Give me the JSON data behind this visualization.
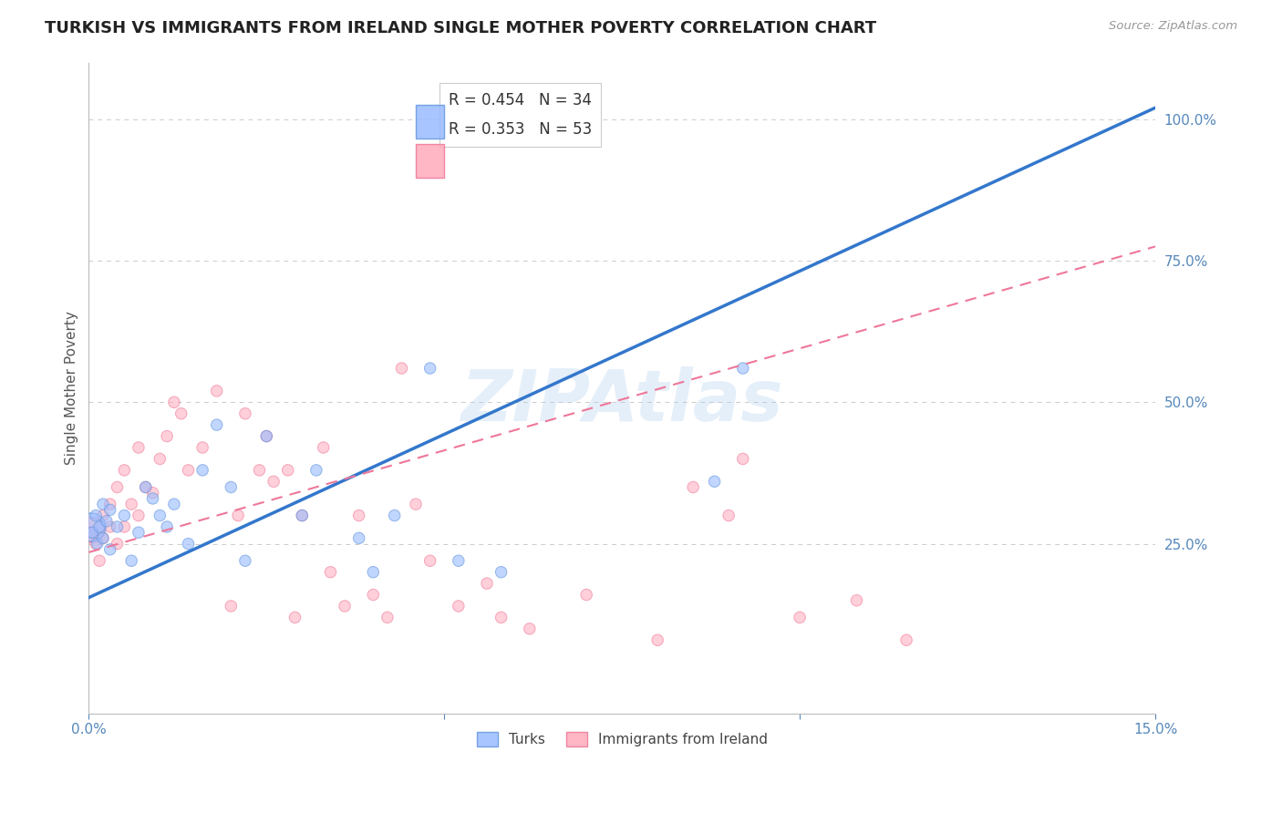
{
  "title": "TURKISH VS IMMIGRANTS FROM IRELAND SINGLE MOTHER POVERTY CORRELATION CHART",
  "source": "Source: ZipAtlas.com",
  "ylabel": "Single Mother Poverty",
  "xlim": [
    0.0,
    0.15
  ],
  "ylim": [
    -0.05,
    1.1
  ],
  "xticks": [
    0.0,
    0.05,
    0.1,
    0.15
  ],
  "xticklabels": [
    "0.0%",
    "",
    "",
    "15.0%"
  ],
  "yticks_right": [
    0.25,
    0.5,
    0.75,
    1.0
  ],
  "ytick_right_labels": [
    "25.0%",
    "50.0%",
    "75.0%",
    "100.0%"
  ],
  "grid_color": "#cccccc",
  "background_color": "#ffffff",
  "turks_color": "#99bbff",
  "turks_edge_color": "#6699dd",
  "ireland_color": "#ffaabb",
  "ireland_edge_color": "#ee7799",
  "turks_R": 0.454,
  "turks_N": 34,
  "ireland_R": 0.353,
  "ireland_N": 53,
  "turks_label": "Turks",
  "ireland_label": "Immigrants from Ireland",
  "watermark": "ZIPAtlas",
  "watermark_color": "#aaccee",
  "title_fontsize": 13,
  "axis_label_fontsize": 11,
  "tick_fontsize": 11,
  "turks_line_x": [
    0.0,
    0.15
  ],
  "turks_line_y": [
    0.155,
    1.02
  ],
  "ireland_line_x": [
    0.0,
    0.15
  ],
  "ireland_line_y": [
    0.235,
    0.775
  ],
  "turks_x": [
    0.0005,
    0.001,
    0.0012,
    0.0015,
    0.002,
    0.002,
    0.0025,
    0.003,
    0.003,
    0.004,
    0.005,
    0.006,
    0.007,
    0.008,
    0.009,
    0.01,
    0.011,
    0.012,
    0.014,
    0.016,
    0.018,
    0.02,
    0.022,
    0.025,
    0.03,
    0.032,
    0.038,
    0.04,
    0.043,
    0.048,
    0.052,
    0.058,
    0.088,
    0.092
  ],
  "turks_y": [
    0.27,
    0.3,
    0.25,
    0.28,
    0.32,
    0.26,
    0.29,
    0.24,
    0.31,
    0.28,
    0.3,
    0.22,
    0.27,
    0.35,
    0.33,
    0.3,
    0.28,
    0.32,
    0.25,
    0.38,
    0.46,
    0.35,
    0.22,
    0.44,
    0.3,
    0.38,
    0.26,
    0.2,
    0.3,
    0.56,
    0.22,
    0.2,
    0.36,
    0.56
  ],
  "turks_sizes": [
    80,
    80,
    80,
    80,
    80,
    80,
    80,
    80,
    80,
    80,
    80,
    80,
    80,
    80,
    80,
    80,
    80,
    80,
    80,
    80,
    80,
    80,
    80,
    80,
    80,
    80,
    80,
    80,
    80,
    80,
    80,
    80,
    80,
    80
  ],
  "turks_big_x": [
    0.0003
  ],
  "turks_big_y": [
    0.28
  ],
  "turks_big_size": [
    500
  ],
  "ireland_x": [
    0.0004,
    0.001,
    0.0015,
    0.002,
    0.002,
    0.003,
    0.003,
    0.004,
    0.004,
    0.005,
    0.005,
    0.006,
    0.007,
    0.007,
    0.008,
    0.009,
    0.01,
    0.011,
    0.012,
    0.013,
    0.014,
    0.016,
    0.018,
    0.02,
    0.021,
    0.022,
    0.024,
    0.025,
    0.026,
    0.028,
    0.029,
    0.03,
    0.033,
    0.034,
    0.036,
    0.038,
    0.04,
    0.042,
    0.044,
    0.046,
    0.048,
    0.052,
    0.056,
    0.058,
    0.062,
    0.07,
    0.08,
    0.085,
    0.09,
    0.092,
    0.1,
    0.108,
    0.115
  ],
  "ireland_y": [
    0.27,
    0.25,
    0.22,
    0.26,
    0.3,
    0.28,
    0.32,
    0.25,
    0.35,
    0.28,
    0.38,
    0.32,
    0.3,
    0.42,
    0.35,
    0.34,
    0.4,
    0.44,
    0.5,
    0.48,
    0.38,
    0.42,
    0.52,
    0.14,
    0.3,
    0.48,
    0.38,
    0.44,
    0.36,
    0.38,
    0.12,
    0.3,
    0.42,
    0.2,
    0.14,
    0.3,
    0.16,
    0.12,
    0.56,
    0.32,
    0.22,
    0.14,
    0.18,
    0.12,
    0.1,
    0.16,
    0.08,
    0.35,
    0.3,
    0.4,
    0.12,
    0.15,
    0.08
  ],
  "ireland_sizes": [
    80,
    80,
    80,
    80,
    80,
    80,
    80,
    80,
    80,
    80,
    80,
    80,
    80,
    80,
    80,
    80,
    80,
    80,
    80,
    80,
    80,
    80,
    80,
    80,
    80,
    80,
    80,
    80,
    80,
    80,
    80,
    80,
    80,
    80,
    80,
    80,
    80,
    80,
    80,
    80,
    80,
    80,
    80,
    80,
    80,
    80,
    80,
    80,
    80,
    80,
    80,
    80,
    80
  ],
  "ireland_big_x": [
    0.0003
  ],
  "ireland_big_y": [
    0.275
  ],
  "ireland_big_size": [
    400
  ]
}
